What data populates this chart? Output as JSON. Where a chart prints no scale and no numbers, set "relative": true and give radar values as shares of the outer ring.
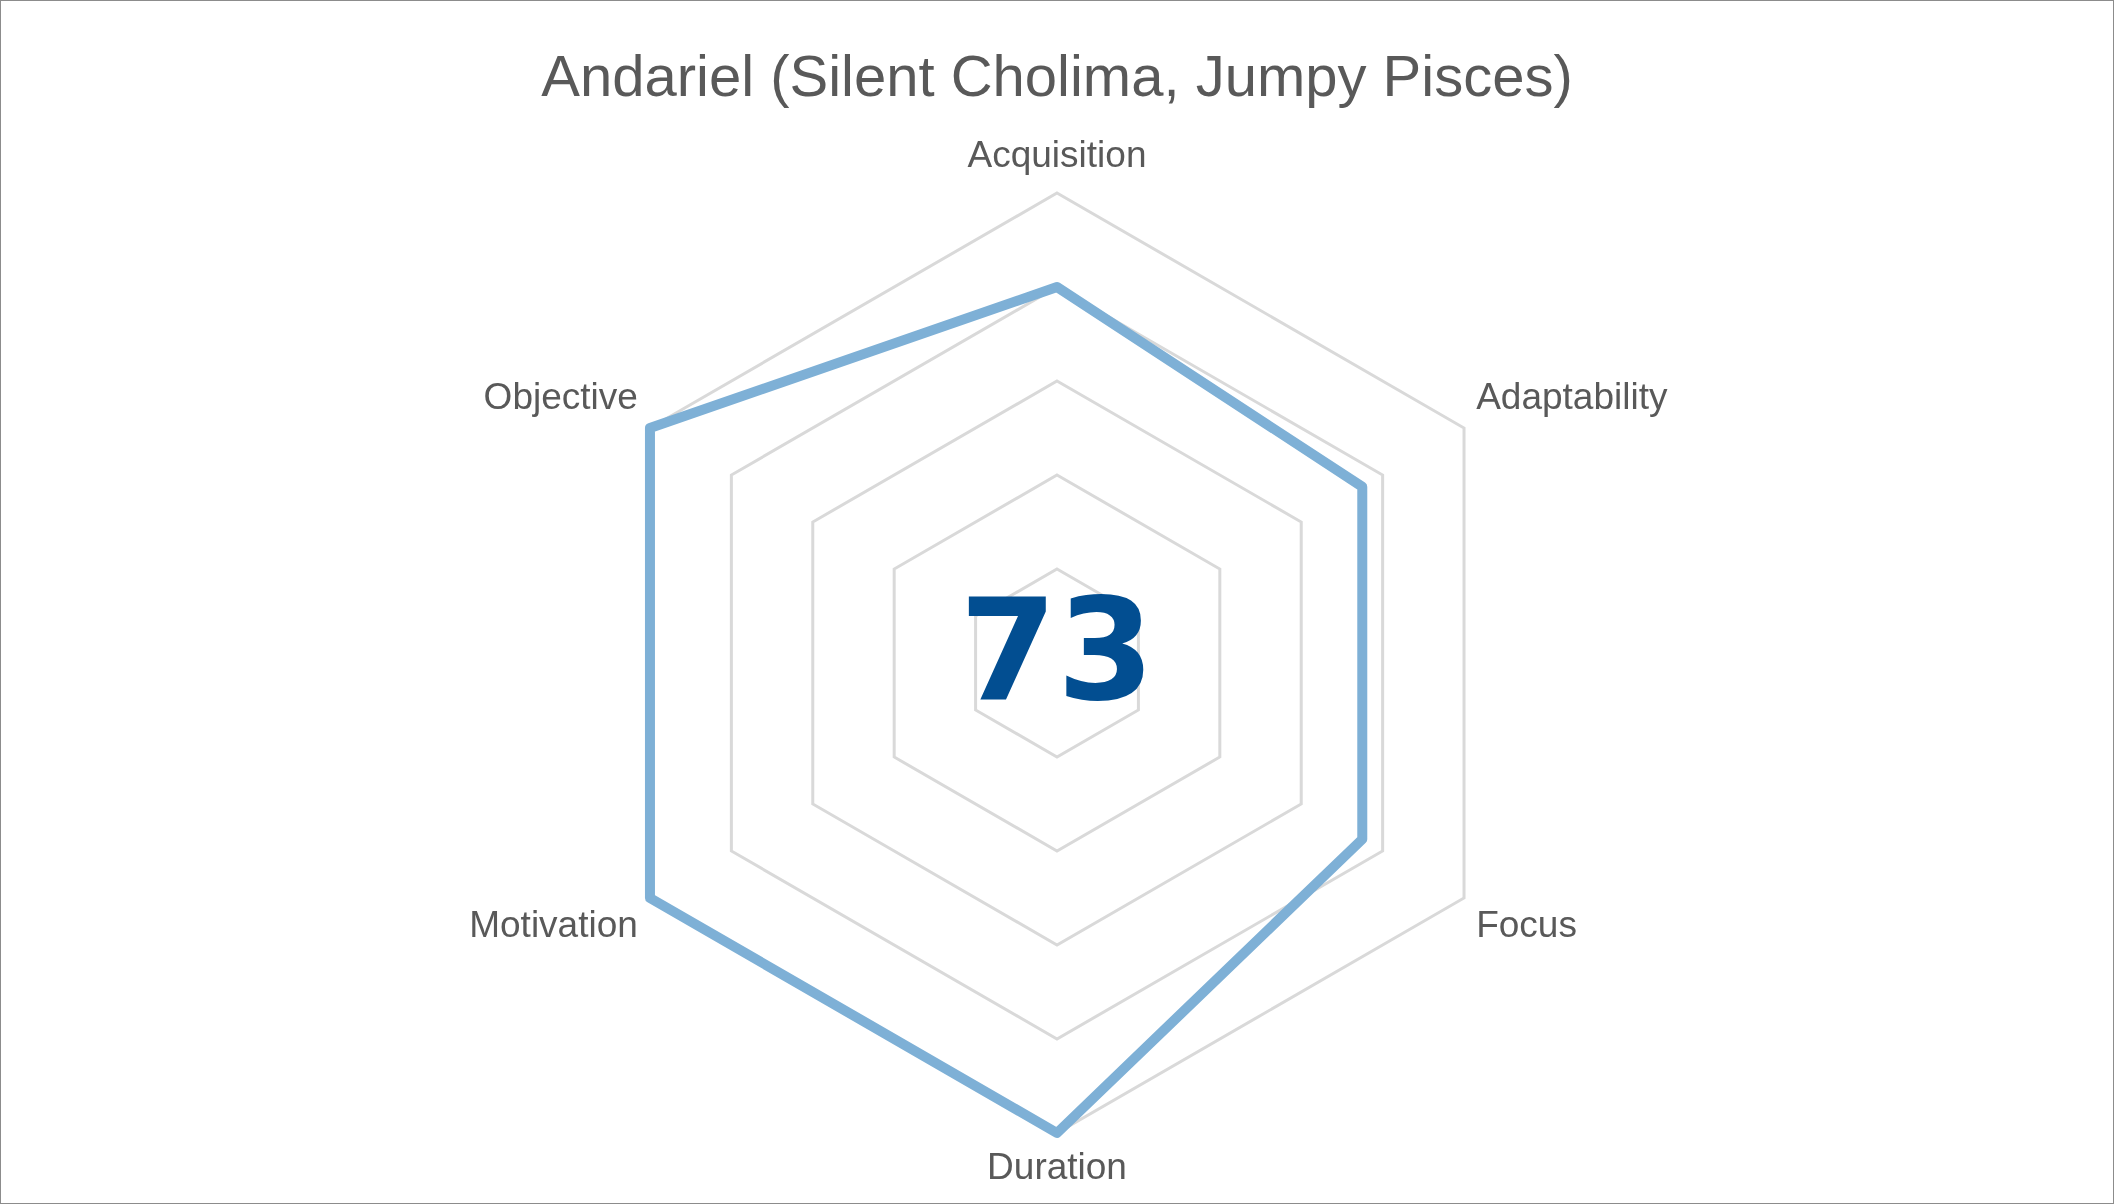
{
  "chart_data": {
    "type": "radar",
    "title": "Andariel (Silent Cholima, Jumpy Pisces)",
    "relative": true,
    "grid": true,
    "legend": false,
    "marker": "none",
    "line_style": "solid",
    "categories": [
      "Acquisition",
      "Adaptability",
      "Focus",
      "Duration",
      "Motivation",
      "Objective"
    ],
    "series": [
      {
        "color": "#7eb0d6",
        "values": [
          0.8,
          0.75,
          0.75,
          1,
          1,
          1
        ]
      }
    ],
    "annotations": [
      "73"
    ]
  }
}
